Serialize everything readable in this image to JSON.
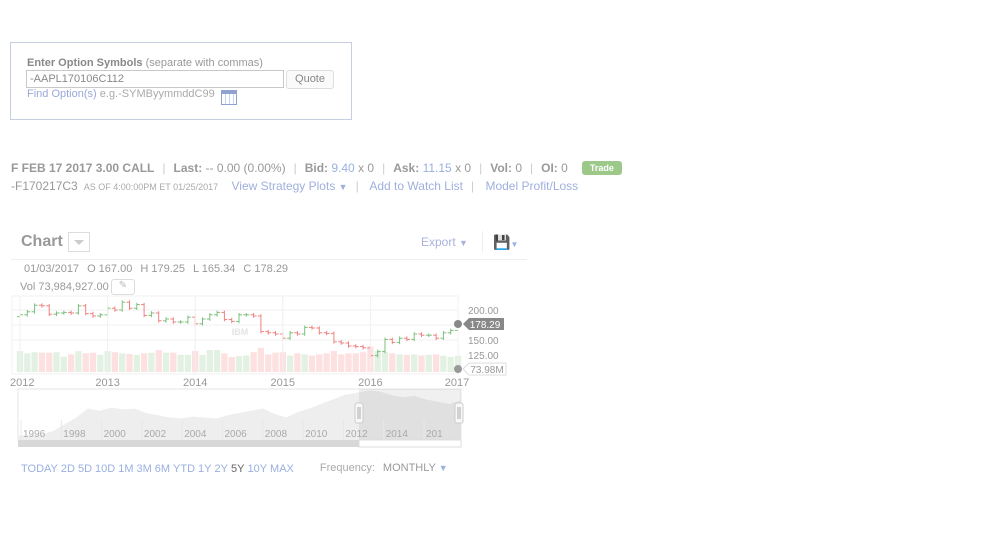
{
  "symbol_box": {
    "label_bold": "Enter Option Symbols",
    "label_hint": "(separate with commas)",
    "input_value": "-AAPL170106C112",
    "quote_button": "Quote",
    "find_link": "Find Option(s)",
    "example": "e.g.-SYMByymmddC99",
    "calendar_icon": "calendar-icon"
  },
  "quote": {
    "name": "F FEB 17 2017 3.00 CALL",
    "last_label": "Last:",
    "last_value": "-- 0.00 (0.00%)",
    "bid_label": "Bid:",
    "bid_value": "9.40",
    "bid_size": "x 0",
    "ask_label": "Ask:",
    "ask_value": "11.15",
    "ask_size": "x 0",
    "vol_label": "Vol:",
    "vol_value": "0",
    "oi_label": "OI:",
    "oi_value": "0",
    "trade_button": "Trade",
    "symbol": "-F170217C3",
    "as_of": "AS OF 4:00:00PM ET 01/25/2017",
    "strategy_link": "View Strategy Plots",
    "watch_link": "Add to Watch List",
    "model_link": "Model Profit/Loss"
  },
  "chart_header": {
    "title": "Chart",
    "export": "Export",
    "date": "01/03/2017",
    "open": "O 167.00",
    "high": "H 179.25",
    "low": "L 165.34",
    "close": "C 178.29",
    "vol": "Vol 73,984,927.00",
    "watermark": "IBM",
    "last_price_tag": "178.29",
    "last_volume_tag": "73.98M"
  },
  "chart_data": {
    "type": "ohlc",
    "x_start": "2012-01",
    "frequency": "monthly",
    "x_ticks": [
      "2012",
      "2013",
      "2014",
      "2015",
      "2016",
      "2017"
    ],
    "y_ticks": [
      "200.00",
      "150.00",
      "125.00"
    ],
    "ylim": [
      115,
      225
    ],
    "closes": [
      192,
      197,
      208,
      207,
      193,
      195,
      196,
      195,
      207,
      194,
      190,
      192,
      203,
      200,
      213,
      203,
      209,
      191,
      195,
      182,
      185,
      180,
      180,
      188,
      177,
      185,
      192,
      196,
      184,
      181,
      192,
      192,
      190,
      164,
      162,
      160,
      153,
      162,
      160,
      171,
      170,
      162,
      161,
      147,
      145,
      140,
      139,
      137,
      124,
      131,
      151,
      146,
      153,
      151,
      160,
      158,
      158,
      153,
      162,
      166,
      178.29
    ],
    "volumes_m": [
      95,
      85,
      90,
      88,
      88,
      90,
      70,
      80,
      95,
      85,
      88,
      78,
      95,
      90,
      85,
      82,
      78,
      85,
      88,
      100,
      88,
      88,
      78,
      78,
      95,
      78,
      100,
      100,
      85,
      68,
      72,
      75,
      90,
      110,
      80,
      88,
      90,
      75,
      85,
      80,
      75,
      80,
      85,
      95,
      80,
      85,
      85,
      90,
      115,
      95,
      90,
      85,
      80,
      78,
      80,
      75,
      78,
      80,
      74,
      68,
      73.98
    ],
    "grid": true
  },
  "navigator": {
    "ticks": [
      "1996",
      "1998",
      "2000",
      "2002",
      "2004",
      "2006",
      "2008",
      "2010",
      "2012",
      "2014",
      "201"
    ],
    "series": [
      10,
      10,
      12,
      20,
      35,
      50,
      70,
      65,
      72,
      68,
      70,
      60,
      55,
      50,
      48,
      52,
      50,
      48,
      55,
      60,
      65,
      70,
      58,
      50,
      62,
      70,
      80,
      90,
      100,
      105,
      110,
      108,
      100,
      95,
      98,
      90,
      85,
      80,
      88
    ]
  },
  "ranges": [
    "TODAY",
    "2D",
    "5D",
    "10D",
    "1M",
    "3M",
    "6M",
    "YTD",
    "1Y",
    "2Y",
    "5Y",
    "10Y",
    "MAX"
  ],
  "active_range": "5Y",
  "frequency": {
    "label": "Frequency:",
    "value": "MONTHLY"
  },
  "colors": {
    "up": "#7cc07c",
    "down": "#f08080",
    "up_vol": "#e3f1e3",
    "down_vol": "#fde0e0",
    "link": "#9ab0e0"
  }
}
